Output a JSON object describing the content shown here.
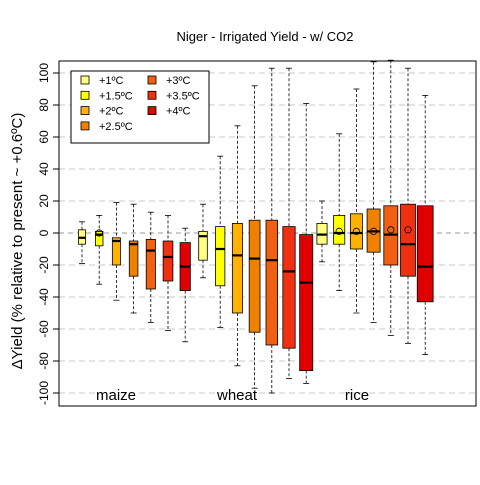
{
  "chart_data": {
    "type": "box",
    "title": "Niger - Irrigated Yield - w/ CO2",
    "ylabel": "ΔYield (% relative to present ~ +0.6ºC)",
    "ylim": [
      -105,
      105
    ],
    "yticks": [
      -100,
      -80,
      -60,
      -40,
      -20,
      0,
      20,
      40,
      60,
      80,
      100
    ],
    "grid": "horizontal dashed",
    "legend_position": "top-left",
    "legend": [
      {
        "label": "+1ºC",
        "color": "#FFFF80"
      },
      {
        "label": "+1.5ºC",
        "color": "#FFFF00"
      },
      {
        "label": "+2ºC",
        "color": "#FFB300"
      },
      {
        "label": "+2.5ºC",
        "color": "#F08000"
      },
      {
        "label": "+3ºC",
        "color": "#F06010"
      },
      {
        "label": "+3.5ºC",
        "color": "#F03010"
      },
      {
        "label": "+4ºC",
        "color": "#E00000"
      }
    ],
    "groups": [
      {
        "name": "maize",
        "boxes": [
          {
            "level": "+1ºC",
            "min": -19,
            "q1": -7,
            "median": -3,
            "q3": 2,
            "max": 7,
            "mean": null
          },
          {
            "level": "+1.5ºC",
            "min": -32,
            "q1": -8,
            "median": -1,
            "q3": 1,
            "max": 11,
            "mean": 0
          },
          {
            "level": "+2ºC",
            "min": -42,
            "q1": -20,
            "median": -5,
            "q3": -3,
            "max": 19,
            "mean": null
          },
          {
            "level": "+2.5ºC",
            "min": -50,
            "q1": -27,
            "median": -7,
            "q3": -5,
            "max": 18,
            "mean": null
          },
          {
            "level": "+3ºC",
            "min": -56,
            "q1": -35,
            "median": -11,
            "q3": -4,
            "max": 13,
            "mean": null
          },
          {
            "level": "+3.5ºC",
            "min": -61,
            "q1": -30,
            "median": -15,
            "q3": -5,
            "max": 11,
            "mean": null
          },
          {
            "level": "+4ºC",
            "min": -68,
            "q1": -36,
            "median": -21,
            "q3": -6,
            "max": 3,
            "mean": null
          }
        ]
      },
      {
        "name": "wheat",
        "boxes": [
          {
            "level": "+1ºC",
            "min": -28,
            "q1": -17,
            "median": -2,
            "q3": 1,
            "max": 18,
            "mean": null
          },
          {
            "level": "+1.5ºC",
            "min": -59,
            "q1": -33,
            "median": -10,
            "q3": 4,
            "max": 48,
            "mean": null
          },
          {
            "level": "+2ºC",
            "min": -83,
            "q1": -50,
            "median": -14,
            "q3": 6,
            "max": 67,
            "mean": null
          },
          {
            "level": "+2.5ºC",
            "min": -97,
            "q1": -62,
            "median": -16,
            "q3": 8,
            "max": 92,
            "mean": null
          },
          {
            "level": "+3ºC",
            "min": -100,
            "q1": -70,
            "median": -17,
            "q3": 8,
            "max": 103,
            "mean": null
          },
          {
            "level": "+3.5ºC",
            "min": -91,
            "q1": -72,
            "median": -24,
            "q3": 4,
            "max": 103,
            "mean": null
          },
          {
            "level": "+4ºC",
            "min": -94,
            "q1": -86,
            "median": -31,
            "q3": -1,
            "max": 81,
            "mean": null
          }
        ]
      },
      {
        "name": "rice",
        "boxes": [
          {
            "level": "+1ºC",
            "min": -18,
            "q1": -7,
            "median": -1,
            "q3": 6,
            "max": 20,
            "mean": null
          },
          {
            "level": "+1.5ºC",
            "min": -36,
            "q1": -7,
            "median": 0,
            "q3": 11,
            "max": 62,
            "mean": 1
          },
          {
            "level": "+2ºC",
            "min": -50,
            "q1": -10,
            "median": 0,
            "q3": 12,
            "max": 90,
            "mean": 1
          },
          {
            "level": "+2.5ºC",
            "min": -56,
            "q1": -12,
            "median": 1,
            "q3": 15,
            "max": 107,
            "mean": 1
          },
          {
            "level": "+3ºC",
            "min": -64,
            "q1": -20,
            "median": -1,
            "q3": 17,
            "max": 108,
            "mean": 2
          },
          {
            "level": "+3.5ºC",
            "min": -69,
            "q1": -27,
            "median": -7,
            "q3": 18,
            "max": 103,
            "mean": 2
          },
          {
            "level": "+4ºC",
            "min": -76,
            "q1": -43,
            "median": -21,
            "q3": 17,
            "max": 86,
            "mean": null
          }
        ]
      }
    ]
  }
}
